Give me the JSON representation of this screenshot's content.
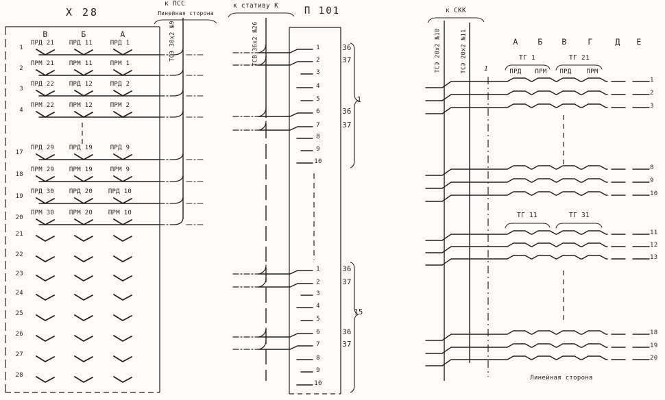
{
  "page": {
    "bg": "#fcfbf8",
    "ink": "#241f19"
  },
  "left": {
    "title": "Х 28",
    "cable": {
      "top_label": "к ПСС",
      "side_label": "Линейная сторона",
      "name": "ТСЭ 30х2 №9"
    },
    "columns": [
      "В",
      "Б",
      "А"
    ],
    "rows": [
      {
        "num": "1",
        "labels": [
          "ПРД 21",
          "ПРД 11",
          "ПРД 1"
        ]
      },
      {
        "num": "2",
        "labels": [
          "ПРМ 21",
          "ПРМ 11",
          "ПРМ 1"
        ]
      },
      {
        "num": "3",
        "labels": [
          "ПРД 22",
          "ПРД 12",
          "ПРД 2"
        ]
      },
      {
        "num": "4",
        "labels": [
          "ПРМ 22",
          "ПРМ 12",
          "ПРМ 2"
        ]
      },
      {
        "num": "17",
        "labels": [
          "ПРД 29",
          "ПРД 19",
          "ПРД 9"
        ]
      },
      {
        "num": "18",
        "labels": [
          "ПРМ 29",
          "ПРМ 19",
          "ПРМ 9"
        ]
      },
      {
        "num": "19",
        "labels": [
          "ПРД 30",
          "ПРД 20",
          "ПРД 10"
        ]
      },
      {
        "num": "20",
        "labels": [
          "ПРМ 30",
          "ПРМ 20",
          "ПРМ 10"
        ]
      },
      {
        "num": "21"
      },
      {
        "num": "22"
      },
      {
        "num": "23"
      },
      {
        "num": "24"
      },
      {
        "num": "25"
      },
      {
        "num": "26"
      },
      {
        "num": "27"
      },
      {
        "num": "28"
      }
    ]
  },
  "middle": {
    "title": "П 101",
    "cable": {
      "top_label": "к стативу К",
      "name": "ТСВ 36х2 №26"
    },
    "groups": [
      {
        "bracket_label": "1",
        "pins": [
          {
            "num": "1",
            "side": "36",
            "wired": true
          },
          {
            "num": "2",
            "side": "37",
            "wired": true
          },
          {
            "num": "3"
          },
          {
            "num": "4"
          },
          {
            "num": "5"
          },
          {
            "num": "6",
            "side": "36",
            "wired": true
          },
          {
            "num": "7",
            "side": "37",
            "wired": true
          },
          {
            "num": "8"
          },
          {
            "num": "9"
          },
          {
            "num": "10"
          }
        ]
      },
      {
        "bracket_label": "15",
        "pins": [
          {
            "num": "1",
            "side": "36",
            "wired": true
          },
          {
            "num": "2",
            "side": "37",
            "wired": true
          },
          {
            "num": "3"
          },
          {
            "num": "4"
          },
          {
            "num": "5"
          },
          {
            "num": "6",
            "side": "36",
            "wired": true
          },
          {
            "num": "7",
            "side": "37",
            "wired": true
          },
          {
            "num": "8"
          },
          {
            "num": "9"
          },
          {
            "num": "10"
          }
        ]
      }
    ]
  },
  "right": {
    "cable": {
      "top_label": "к СКК",
      "names": [
        "ТСЭ 20х2 №10",
        "ТСЭ 20х2 №11"
      ],
      "count_mark": "1"
    },
    "columns": [
      "А",
      "Б",
      "В",
      "Г",
      "Д",
      "Е"
    ],
    "tg_groups_top": [
      {
        "label": "ТГ 1",
        "sub": [
          "ПРД",
          "ПРМ"
        ]
      },
      {
        "label": "ТГ 21",
        "sub": [
          "ПРД",
          "ПРМ"
        ]
      }
    ],
    "tg_groups_mid": [
      {
        "label": "ТГ 11"
      },
      {
        "label": "ТГ 31"
      }
    ],
    "rows": [
      {
        "num": "1"
      },
      {
        "num": "2"
      },
      {
        "num": "3"
      },
      {
        "num": "8"
      },
      {
        "num": "9"
      },
      {
        "num": "10"
      },
      {
        "num": "11"
      },
      {
        "num": "12"
      },
      {
        "num": "13"
      },
      {
        "num": "18"
      },
      {
        "num": "19"
      },
      {
        "num": "20"
      }
    ],
    "bottom_caption": "Линейная сторона"
  }
}
